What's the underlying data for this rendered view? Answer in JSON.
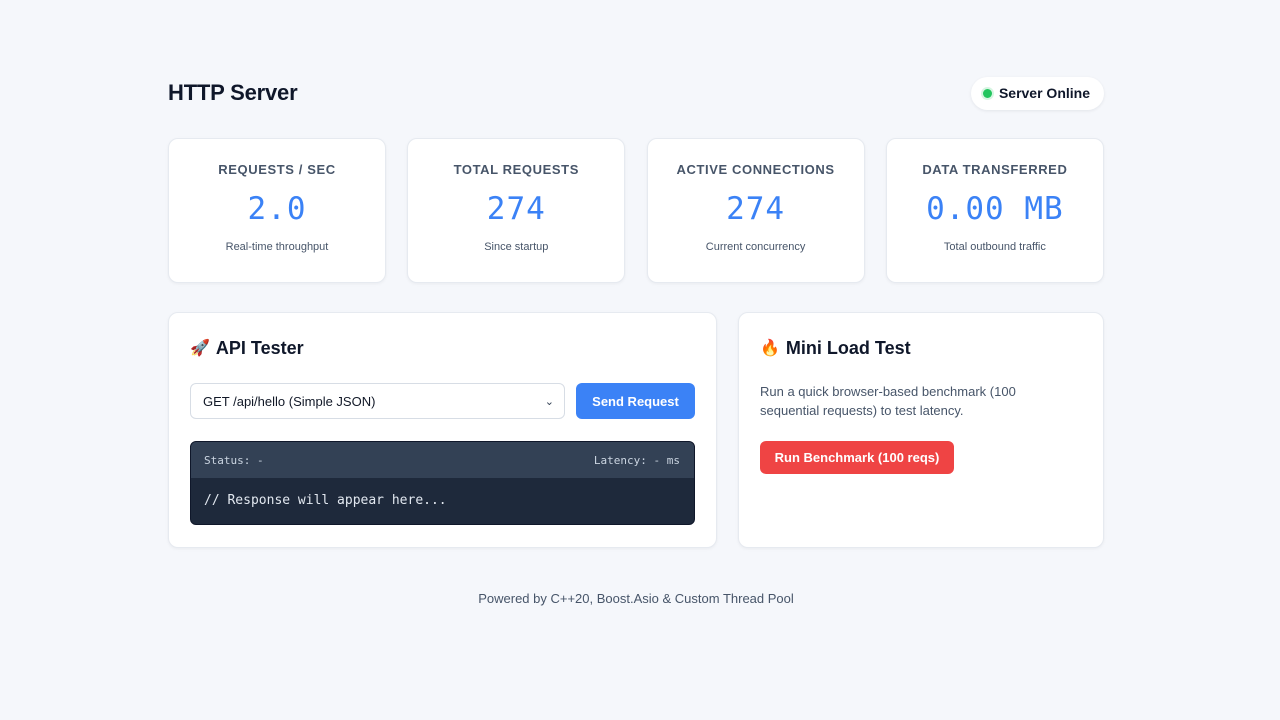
{
  "header": {
    "title": "HTTP Server",
    "status_label": "Server Online",
    "status_color": "#22c55e"
  },
  "stats": [
    {
      "label": "REQUESTS / SEC",
      "value": "2.0",
      "sub": "Real-time throughput"
    },
    {
      "label": "TOTAL REQUESTS",
      "value": "274",
      "sub": "Since startup"
    },
    {
      "label": "ACTIVE CONNECTIONS",
      "value": "274",
      "sub": "Current concurrency"
    },
    {
      "label": "DATA TRANSFERRED",
      "value": "0.00 MB",
      "sub": "Total outbound traffic"
    }
  ],
  "api_tester": {
    "icon": "rocket-icon",
    "emoji": "🚀",
    "title": "API Tester",
    "selected_endpoint": "GET /api/hello (Simple JSON)",
    "send_label": "Send Request",
    "status_text": "Status: -",
    "latency_text": "Latency: - ms",
    "response_text": "// Response will appear here..."
  },
  "load_test": {
    "icon": "fire-icon",
    "emoji": "🔥",
    "title": "Mini Load Test",
    "description": "Run a quick browser-based benchmark (100 sequential requests) to test latency.",
    "button_label": "Run Benchmark (100 reqs)"
  },
  "footer": {
    "text": "Powered by C++20, Boost.Asio & Custom Thread Pool"
  },
  "colors": {
    "accent": "#3b82f6",
    "danger": "#ef4444",
    "background": "#f5f7fb"
  }
}
